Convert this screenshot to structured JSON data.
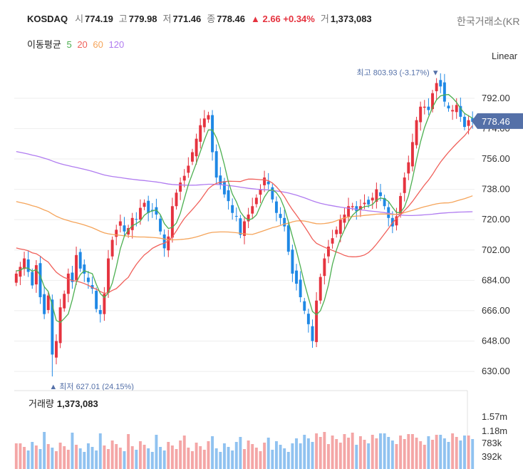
{
  "header": {
    "symbol": "KOSDAQ",
    "open_label": "시",
    "open": "774.19",
    "high_label": "고",
    "high": "779.98",
    "low_label": "저",
    "low": "771.46",
    "close_label": "종",
    "close": "778.46",
    "change": "▲ 2.66 +0.34%",
    "volume_label": "거",
    "volume": "1,373,083",
    "exchange": "한국거래소(KR"
  },
  "ma": {
    "label": "이동평균",
    "periods": [
      {
        "period": "5",
        "color": "#4caf50"
      },
      {
        "period": "20",
        "color": "#f0605a"
      },
      {
        "period": "60",
        "color": "#f5a45a"
      },
      {
        "period": "120",
        "color": "#b07cf0"
      }
    ]
  },
  "scale_mode": "Linear",
  "annotations": {
    "high_label": "최고 803.93 (-3.17%) ▼",
    "low_label": "▲ 최저 627.01 (24.15%)"
  },
  "volume_panel": {
    "title": "거래량",
    "value": "1,373,083",
    "ticks": [
      "1.57m",
      "1.18m",
      "783k",
      "392k"
    ]
  },
  "colors": {
    "up": "#e5333f",
    "down": "#1e88e5",
    "up_volume": "#f4a6a6",
    "down_volume": "#90c2f0",
    "price_tag": "#5470a8"
  },
  "chart_data": {
    "type": "candlestick",
    "price_axis": {
      "ticks": [
        "792.00",
        "774.00",
        "756.00",
        "738.00",
        "720.00",
        "702.00",
        "684.00",
        "666.00",
        "648.00",
        "630.00"
      ],
      "ylim": [
        622,
        808
      ]
    },
    "current_price": "778.46",
    "high": 803.93,
    "low": 627.01,
    "closes": [
      688,
      692,
      697,
      689,
      681,
      693,
      674,
      664,
      675,
      640,
      648,
      668,
      676,
      688,
      683,
      699,
      691,
      688,
      683,
      679,
      667,
      664,
      676,
      697,
      708,
      714,
      719,
      713,
      715,
      721,
      720,
      727,
      730,
      724,
      725,
      723,
      713,
      703,
      710,
      728,
      736,
      742,
      746,
      752,
      760,
      768,
      776,
      780,
      782,
      760,
      745,
      741,
      735,
      731,
      724,
      722,
      711,
      719,
      723,
      728,
      733,
      738,
      745,
      741,
      732,
      724,
      721,
      716,
      701,
      688,
      682,
      674,
      666,
      658,
      648,
      672,
      686,
      697,
      704,
      709,
      714,
      720,
      723,
      728,
      728,
      725,
      728,
      730,
      729,
      733,
      738,
      734,
      728,
      721,
      716,
      722,
      734,
      745,
      754,
      766,
      779,
      787,
      787,
      785,
      795,
      801,
      799,
      790,
      786,
      785,
      788,
      781,
      775,
      779,
      778
    ]
  }
}
